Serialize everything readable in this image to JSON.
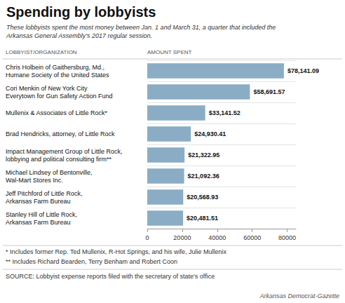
{
  "chart_data": {
    "type": "bar",
    "orientation": "horizontal",
    "title": "Spending by lobbyists",
    "subtitle": "These lobbyists spent the most money between Jan. 1 and March 31, a quarter that included the\nArkansas General Assembly's 2017 regular session.",
    "ylabel": "LOBBYIST/ORGANIZATION",
    "xlabel": "AMOUNT SPENT",
    "categories": [
      "Chris Holbein of Gaithersburg, Md.,\nHumane Society of the United States",
      "Cori Menkin of New York City\nEverytown for Gun Safety Action Fund",
      "Mullenix & Associates of Little Rock*",
      "Brad Hendricks, attorney, of Little Rock",
      "Impact Management Group of Little Rock,\nlobbying and political consulting firm**",
      "Michael Lindsey of Bentonville,\nWal-Mart Stores Inc.",
      "Jeff Pitchford of Little Rock,\nArkansas Farm Bureau",
      "Stanley Hill of Little Rock,\nArkansas Farm Bureau"
    ],
    "values": [
      78141.09,
      58691.57,
      33141.52,
      24930.41,
      21322.95,
      21092.36,
      20568.93,
      20481.51
    ],
    "value_labels": [
      "$78,141.09",
      "$58,691.57",
      "$33,141.52",
      "$24,930.41",
      "$21,322.95",
      "$21,092.36",
      "$20,568.93",
      "$20,481.51"
    ],
    "data_labels": true,
    "color": "#8aadc5",
    "xlim": [
      0,
      85000
    ],
    "xticks": [
      0,
      20000,
      40000,
      60000,
      80000
    ],
    "annotations": [
      "* Includes former Rep. Ted Mullenix, R-Hot Springs, and his wife, Julie Mullenix",
      "** Includes Richard Bearden, Terry Benham and Robert Coon",
      "SOURCE: Lobbyist expense reports filed with the secretary of state's office",
      "Arkansas Democrat-Gazette"
    ]
  }
}
